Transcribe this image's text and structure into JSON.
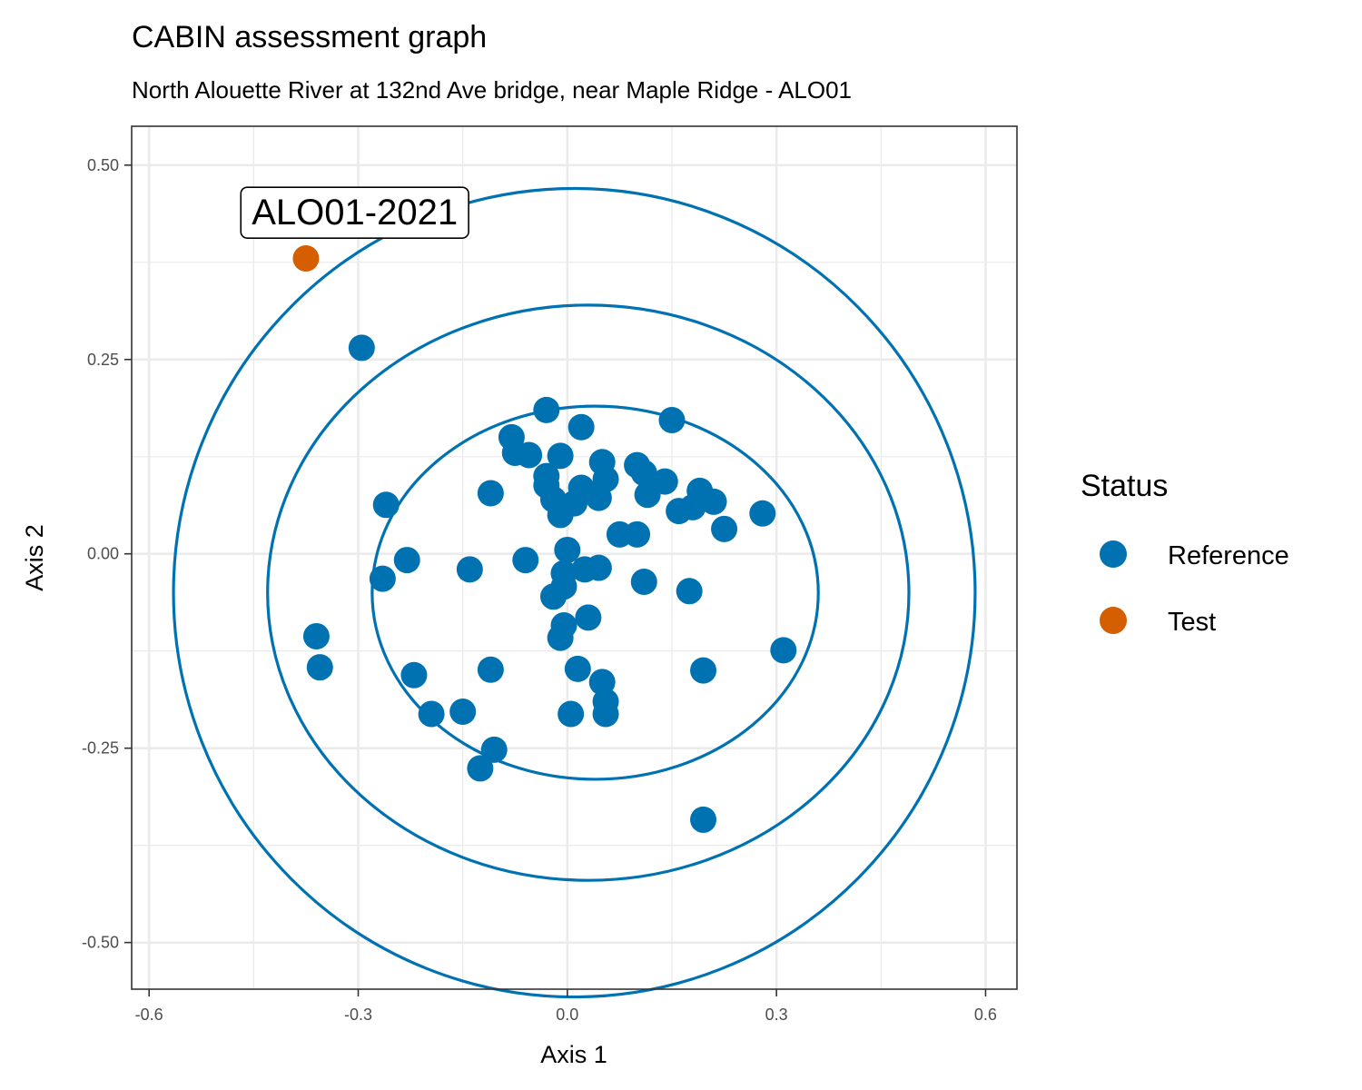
{
  "chart_data": {
    "type": "scatter",
    "title": "CABIN assessment graph",
    "subtitle": "North Alouette River at 132nd Ave bridge, near Maple Ridge - ALO01",
    "xlabel": "Axis 1",
    "ylabel": "Axis 2",
    "xlim": [
      -0.625,
      0.645
    ],
    "ylim": [
      -0.56,
      0.55
    ],
    "x_ticks": [
      -0.6,
      -0.3,
      0.0,
      0.3,
      0.6
    ],
    "x_tick_labels": [
      "-0.6",
      "-0.3",
      "0.0",
      "0.3",
      "0.6"
    ],
    "y_ticks": [
      0.5,
      0.25,
      0.0,
      -0.25,
      -0.5
    ],
    "y_tick_labels": [
      "0.50",
      "0.25",
      "0.00",
      "-0.25",
      "-0.50"
    ],
    "grid": true,
    "legend": {
      "title": "Status",
      "position": "right",
      "entries": [
        {
          "label": "Reference",
          "color": "#0072B2"
        },
        {
          "label": "Test",
          "color": "#D55E00"
        }
      ]
    },
    "ellipses": [
      {
        "name": "inner",
        "cx": 0.04,
        "cy": -0.05,
        "rx": 0.32,
        "ry": 0.24,
        "color": "#0072B2"
      },
      {
        "name": "middle",
        "cx": 0.03,
        "cy": -0.05,
        "rx": 0.46,
        "ry": 0.37,
        "color": "#0072B2"
      },
      {
        "name": "outer",
        "cx": 0.01,
        "cy": -0.05,
        "rx": 0.575,
        "ry": 0.52,
        "color": "#0072B2"
      }
    ],
    "series": [
      {
        "name": "Reference",
        "color": "#0072B2",
        "points": [
          [
            -0.295,
            0.265
          ],
          [
            -0.03,
            0.185
          ],
          [
            -0.08,
            0.15
          ],
          [
            0.02,
            0.163
          ],
          [
            0.15,
            0.172
          ],
          [
            -0.075,
            0.13
          ],
          [
            -0.055,
            0.127
          ],
          [
            -0.01,
            0.126
          ],
          [
            0.05,
            0.118
          ],
          [
            0.1,
            0.114
          ],
          [
            0.11,
            0.104
          ],
          [
            -0.03,
            0.1
          ],
          [
            0.055,
            0.096
          ],
          [
            0.14,
            0.093
          ],
          [
            -0.03,
            0.088
          ],
          [
            0.02,
            0.085
          ],
          [
            -0.11,
            0.078
          ],
          [
            0.115,
            0.076
          ],
          [
            0.045,
            0.072
          ],
          [
            -0.02,
            0.07
          ],
          [
            0.01,
            0.065
          ],
          [
            -0.26,
            0.063
          ],
          [
            0.19,
            0.081
          ],
          [
            0.21,
            0.067
          ],
          [
            0.18,
            0.06
          ],
          [
            0.16,
            0.055
          ],
          [
            0.28,
            0.052
          ],
          [
            -0.01,
            0.05
          ],
          [
            0.225,
            0.032
          ],
          [
            0.075,
            0.025
          ],
          [
            0.1,
            0.025
          ],
          [
            0.0,
            0.005
          ],
          [
            -0.23,
            -0.008
          ],
          [
            -0.06,
            -0.008
          ],
          [
            -0.14,
            -0.02
          ],
          [
            0.045,
            -0.018
          ],
          [
            0.025,
            -0.02
          ],
          [
            -0.005,
            -0.025
          ],
          [
            -0.265,
            -0.032
          ],
          [
            0.11,
            -0.036
          ],
          [
            -0.005,
            -0.042
          ],
          [
            0.175,
            -0.048
          ],
          [
            -0.02,
            -0.055
          ],
          [
            0.03,
            -0.082
          ],
          [
            -0.005,
            -0.092
          ],
          [
            -0.36,
            -0.106
          ],
          [
            -0.01,
            -0.108
          ],
          [
            0.31,
            -0.124
          ],
          [
            -0.355,
            -0.146
          ],
          [
            -0.11,
            -0.149
          ],
          [
            0.195,
            -0.15
          ],
          [
            0.015,
            -0.148
          ],
          [
            -0.22,
            -0.156
          ],
          [
            0.05,
            -0.165
          ],
          [
            0.055,
            -0.19
          ],
          [
            -0.195,
            -0.206
          ],
          [
            -0.15,
            -0.203
          ],
          [
            0.005,
            -0.206
          ],
          [
            0.055,
            -0.206
          ],
          [
            -0.105,
            -0.252
          ],
          [
            -0.125,
            -0.276
          ],
          [
            0.195,
            -0.342
          ]
        ]
      },
      {
        "name": "Test",
        "color": "#D55E00",
        "points": [
          [
            -0.375,
            0.38
          ]
        ]
      }
    ],
    "annotations": [
      {
        "text": "ALO01-2021",
        "x": -0.305,
        "y": 0.44
      }
    ]
  }
}
